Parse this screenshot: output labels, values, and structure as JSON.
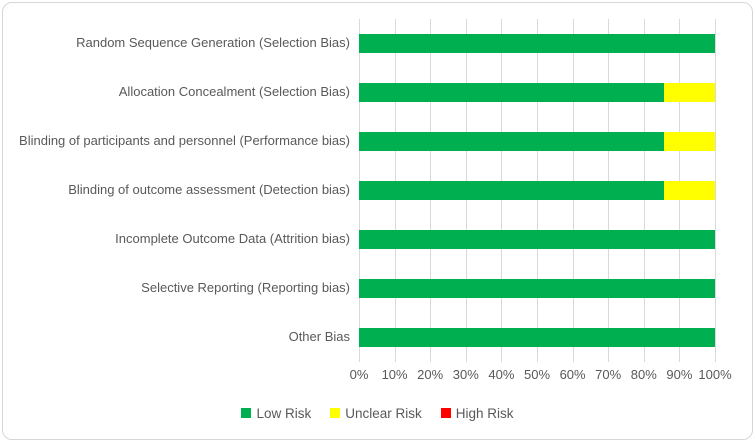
{
  "chart_data": {
    "type": "bar",
    "orientation": "horizontal-stacked",
    "title": "",
    "xlabel": "",
    "ylabel": "",
    "xlim": [
      0,
      100
    ],
    "grid": true,
    "legend_position": "bottom",
    "categories": [
      "Random Sequence Generation (Selection Bias)",
      "Allocation Concealment (Selection Bias)",
      "Blinding of participants and personnel (Performance bias)",
      "Blinding of outcome assessment (Detection bias)",
      "Incomplete Outcome Data (Attrition bias)",
      "Selective Reporting (Reporting bias)",
      "Other Bias"
    ],
    "series": [
      {
        "name": "Low Risk",
        "color": "#00B050",
        "values": [
          100,
          85.7,
          85.7,
          85.7,
          100,
          100,
          100
        ]
      },
      {
        "name": "Unclear Risk",
        "color": "#FFFF00",
        "values": [
          0,
          14.3,
          14.3,
          14.3,
          0,
          0,
          0
        ]
      },
      {
        "name": "High Risk",
        "color": "#FF0000",
        "values": [
          0,
          0,
          0,
          0,
          0,
          0,
          0
        ]
      }
    ],
    "x_ticks": [
      "0%",
      "10%",
      "20%",
      "30%",
      "40%",
      "50%",
      "60%",
      "70%",
      "80%",
      "90%",
      "100%"
    ]
  },
  "colors": {
    "gridline": "#D9D9D9",
    "axis_text": "#595959",
    "frame_border": "#D6D6D6",
    "background": "#FFFFFF"
  }
}
